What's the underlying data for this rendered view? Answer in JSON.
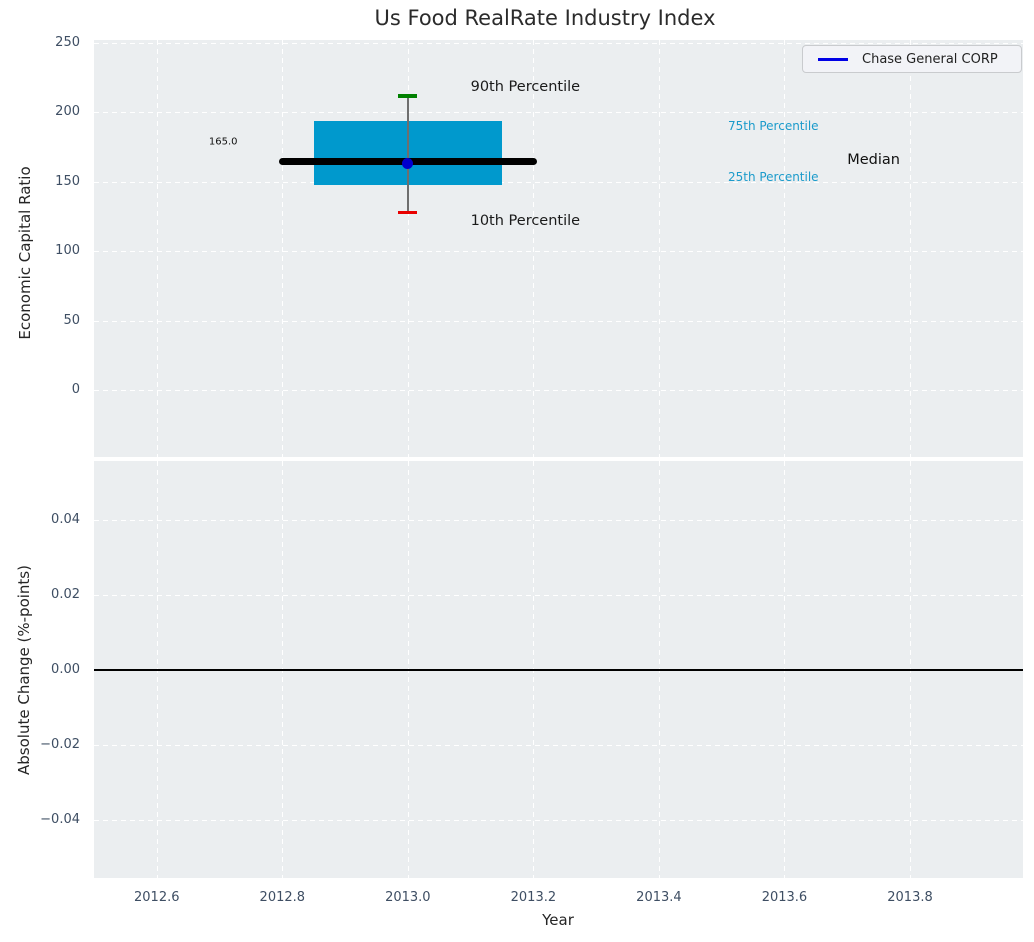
{
  "chart_data": {
    "type": "boxplot",
    "title": "Us Food RealRate Industry Index",
    "xlabel": "Year",
    "xlim": [
      2012.5,
      2013.98
    ],
    "xticks": [
      2012.6,
      2012.8,
      2013.0,
      2013.2,
      2013.4,
      2013.6,
      2013.8
    ],
    "xtick_labels": [
      "2012.6",
      "2012.8",
      "2013.0",
      "2013.2",
      "2013.4",
      "2013.6",
      "2013.8"
    ],
    "grid": true,
    "legend": {
      "position": "upper right",
      "entries": [
        {
          "label": "Chase General CORP",
          "color": "#0000e6",
          "marker": "line"
        }
      ]
    },
    "top": {
      "ylabel": "Economic Capital Ratio",
      "ylim": [
        -48.3,
        252.2
      ],
      "yticks": [
        0,
        50,
        100,
        150,
        200,
        250
      ],
      "ytick_labels": [
        "0",
        "50",
        "100",
        "150",
        "200",
        "250"
      ],
      "boxplot": {
        "x": 2013.0,
        "median": 165.0,
        "median_label": "165.0",
        "q1": 148.0,
        "q3": 194.0,
        "p10": 128.0,
        "p90": 212.0,
        "company_value": 163.0,
        "box_half_width": 0.15,
        "median_half_width": 0.205,
        "cap_half_width": 0.015,
        "box_color": "#0099cd",
        "median_color": "#000000",
        "whisker_color": "#6e6e6e",
        "p90_cap_color": "#008000",
        "p10_cap_color": "#e80000",
        "company_marker_color": "#0000cd"
      },
      "annotations": [
        {
          "text": "90th Percentile",
          "x": 2013.1,
          "y": 218,
          "color": "#1a1a1a",
          "size": 14.5
        },
        {
          "text": "10th Percentile",
          "x": 2013.1,
          "y": 122,
          "color": "#1a1a1a",
          "size": 14.5
        },
        {
          "text": "75th Percentile",
          "x": 2013.51,
          "y": 190,
          "color": "#1b9bcb",
          "size": 12
        },
        {
          "text": "25th Percentile",
          "x": 2013.51,
          "y": 153.5,
          "color": "#1b9bcb",
          "size": 12
        },
        {
          "text": "Median",
          "x": 2013.7,
          "y": 166,
          "color": "#111111",
          "size": 14.5
        },
        {
          "text": "165.0",
          "x": 2012.683,
          "y": 179,
          "color": "#111111",
          "size": 10
        }
      ]
    },
    "bottom": {
      "ylabel": "Absolute Change (%-points)",
      "ylim": [
        -0.0555,
        0.0557
      ],
      "yticks": [
        0.04,
        0.02,
        0,
        -0.02,
        -0.04
      ],
      "ytick_labels": [
        "0.04",
        "0.02",
        "0.00",
        "−0.02",
        "−0.04"
      ],
      "zero_line": {
        "y": 0,
        "color": "#000000"
      }
    },
    "style": {
      "figure_background": "#ffffff",
      "axes_background": "#ebeef0",
      "grid_color": "#ffffff",
      "tick_label_color": "#3e4e63",
      "text_color": "#262626"
    }
  }
}
